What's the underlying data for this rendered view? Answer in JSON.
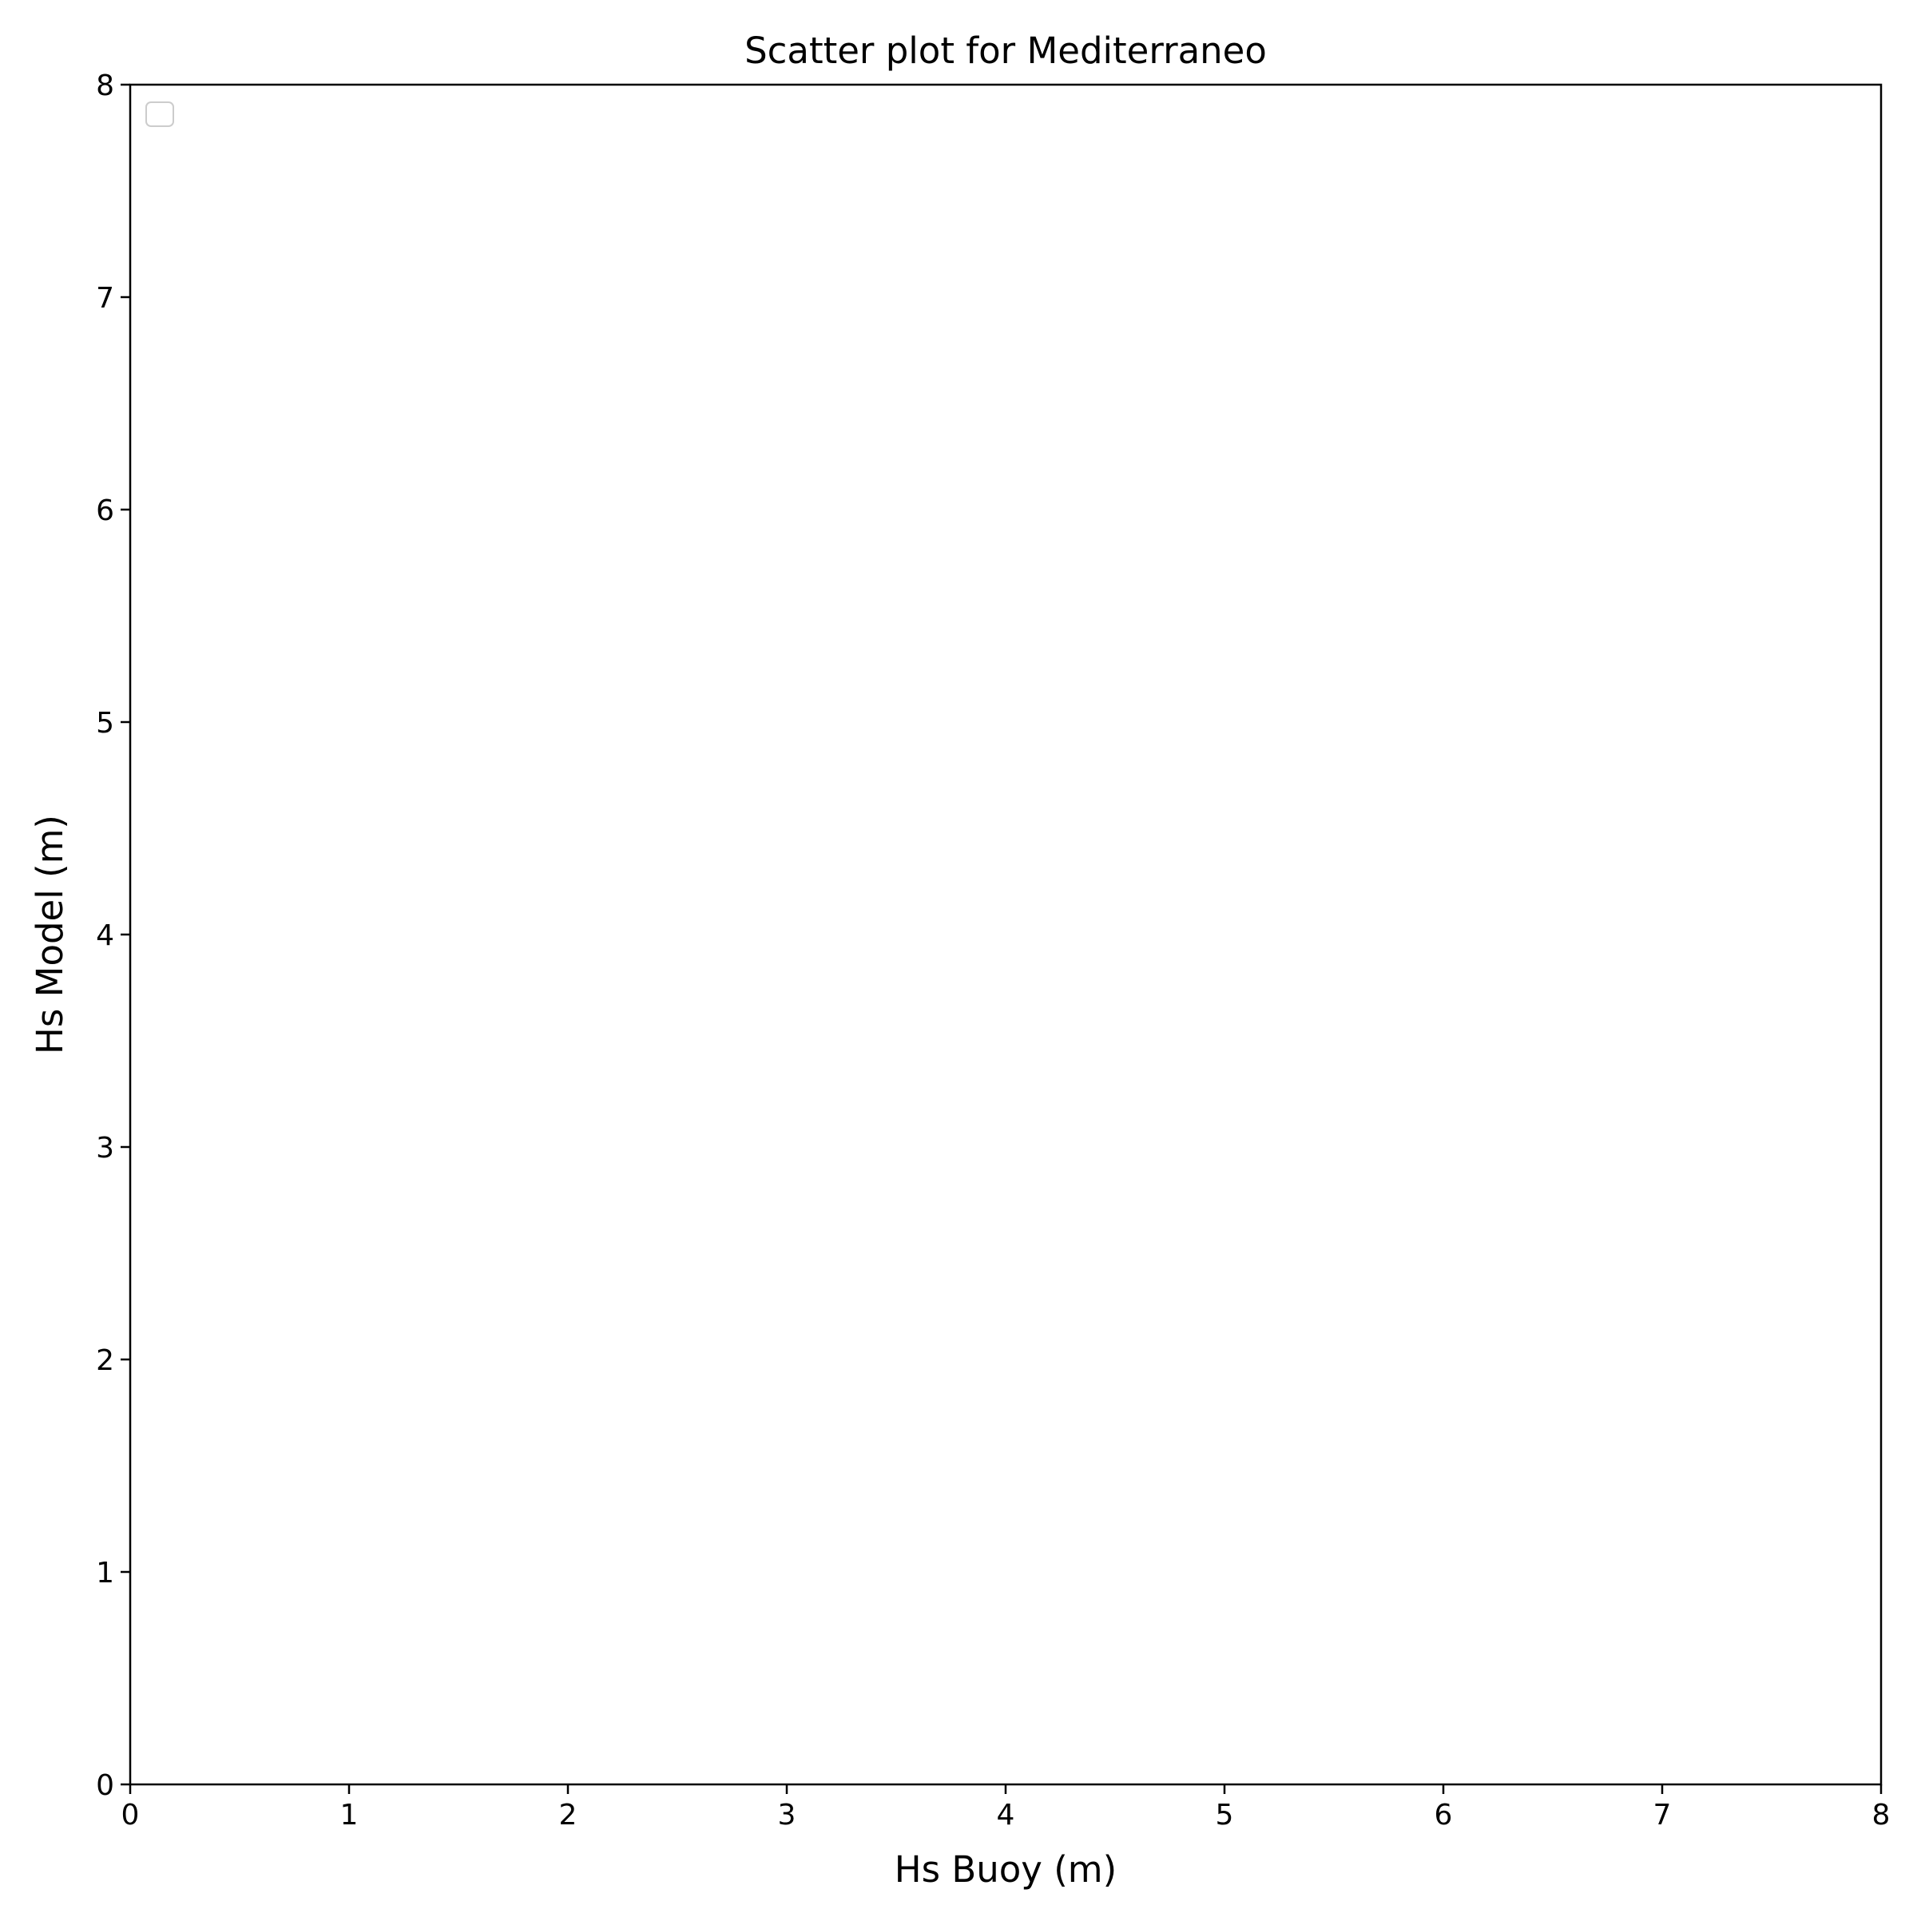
{
  "chart_data": {
    "type": "scatter",
    "title": "Scatter plot for Mediterraneo",
    "xlabel": "Hs Buoy (m)",
    "ylabel": "Hs Model (m)",
    "xlim": [
      0,
      8
    ],
    "ylim": [
      0,
      8
    ],
    "xticks": [
      "0",
      "1",
      "2",
      "3",
      "4",
      "5",
      "6",
      "7",
      "8"
    ],
    "yticks": [
      "0",
      "1",
      "2",
      "3",
      "4",
      "5",
      "6",
      "7",
      "8"
    ],
    "grid": false,
    "legend": {
      "placement": "upper-left",
      "entries": []
    },
    "series": []
  }
}
